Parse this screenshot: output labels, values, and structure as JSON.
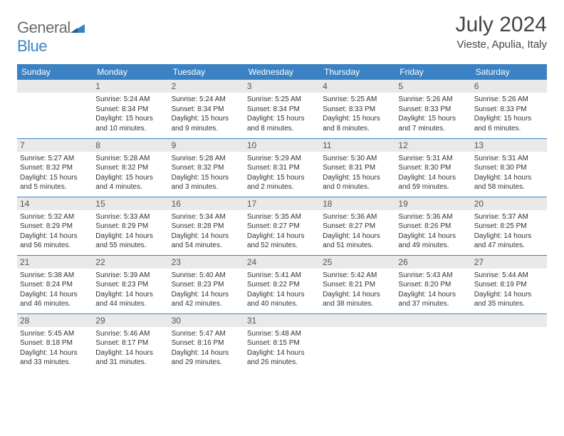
{
  "colors": {
    "header_bg": "#3b82c4",
    "header_text": "#ffffff",
    "daybar_bg": "#e9e9e9",
    "border": "#3b82c4",
    "body_text": "#333333",
    "logo_gray": "#6b6b6b",
    "logo_blue": "#3b82c4"
  },
  "logo": {
    "text_gray": "General",
    "text_blue": "Blue"
  },
  "title": {
    "month": "July 2024",
    "location": "Vieste, Apulia, Italy"
  },
  "weekdays": [
    "Sunday",
    "Monday",
    "Tuesday",
    "Wednesday",
    "Thursday",
    "Friday",
    "Saturday"
  ],
  "layout": {
    "first_weekday_index": 1,
    "days_in_month": 31
  },
  "days": {
    "1": {
      "sunrise": "5:24 AM",
      "sunset": "8:34 PM",
      "daylight": "15 hours and 10 minutes."
    },
    "2": {
      "sunrise": "5:24 AM",
      "sunset": "8:34 PM",
      "daylight": "15 hours and 9 minutes."
    },
    "3": {
      "sunrise": "5:25 AM",
      "sunset": "8:34 PM",
      "daylight": "15 hours and 8 minutes."
    },
    "4": {
      "sunrise": "5:25 AM",
      "sunset": "8:33 PM",
      "daylight": "15 hours and 8 minutes."
    },
    "5": {
      "sunrise": "5:26 AM",
      "sunset": "8:33 PM",
      "daylight": "15 hours and 7 minutes."
    },
    "6": {
      "sunrise": "5:26 AM",
      "sunset": "8:33 PM",
      "daylight": "15 hours and 6 minutes."
    },
    "7": {
      "sunrise": "5:27 AM",
      "sunset": "8:32 PM",
      "daylight": "15 hours and 5 minutes."
    },
    "8": {
      "sunrise": "5:28 AM",
      "sunset": "8:32 PM",
      "daylight": "15 hours and 4 minutes."
    },
    "9": {
      "sunrise": "5:28 AM",
      "sunset": "8:32 PM",
      "daylight": "15 hours and 3 minutes."
    },
    "10": {
      "sunrise": "5:29 AM",
      "sunset": "8:31 PM",
      "daylight": "15 hours and 2 minutes."
    },
    "11": {
      "sunrise": "5:30 AM",
      "sunset": "8:31 PM",
      "daylight": "15 hours and 0 minutes."
    },
    "12": {
      "sunrise": "5:31 AM",
      "sunset": "8:30 PM",
      "daylight": "14 hours and 59 minutes."
    },
    "13": {
      "sunrise": "5:31 AM",
      "sunset": "8:30 PM",
      "daylight": "14 hours and 58 minutes."
    },
    "14": {
      "sunrise": "5:32 AM",
      "sunset": "8:29 PM",
      "daylight": "14 hours and 56 minutes."
    },
    "15": {
      "sunrise": "5:33 AM",
      "sunset": "8:29 PM",
      "daylight": "14 hours and 55 minutes."
    },
    "16": {
      "sunrise": "5:34 AM",
      "sunset": "8:28 PM",
      "daylight": "14 hours and 54 minutes."
    },
    "17": {
      "sunrise": "5:35 AM",
      "sunset": "8:27 PM",
      "daylight": "14 hours and 52 minutes."
    },
    "18": {
      "sunrise": "5:36 AM",
      "sunset": "8:27 PM",
      "daylight": "14 hours and 51 minutes."
    },
    "19": {
      "sunrise": "5:36 AM",
      "sunset": "8:26 PM",
      "daylight": "14 hours and 49 minutes."
    },
    "20": {
      "sunrise": "5:37 AM",
      "sunset": "8:25 PM",
      "daylight": "14 hours and 47 minutes."
    },
    "21": {
      "sunrise": "5:38 AM",
      "sunset": "8:24 PM",
      "daylight": "14 hours and 46 minutes."
    },
    "22": {
      "sunrise": "5:39 AM",
      "sunset": "8:23 PM",
      "daylight": "14 hours and 44 minutes."
    },
    "23": {
      "sunrise": "5:40 AM",
      "sunset": "8:23 PM",
      "daylight": "14 hours and 42 minutes."
    },
    "24": {
      "sunrise": "5:41 AM",
      "sunset": "8:22 PM",
      "daylight": "14 hours and 40 minutes."
    },
    "25": {
      "sunrise": "5:42 AM",
      "sunset": "8:21 PM",
      "daylight": "14 hours and 38 minutes."
    },
    "26": {
      "sunrise": "5:43 AM",
      "sunset": "8:20 PM",
      "daylight": "14 hours and 37 minutes."
    },
    "27": {
      "sunrise": "5:44 AM",
      "sunset": "8:19 PM",
      "daylight": "14 hours and 35 minutes."
    },
    "28": {
      "sunrise": "5:45 AM",
      "sunset": "8:18 PM",
      "daylight": "14 hours and 33 minutes."
    },
    "29": {
      "sunrise": "5:46 AM",
      "sunset": "8:17 PM",
      "daylight": "14 hours and 31 minutes."
    },
    "30": {
      "sunrise": "5:47 AM",
      "sunset": "8:16 PM",
      "daylight": "14 hours and 29 minutes."
    },
    "31": {
      "sunrise": "5:48 AM",
      "sunset": "8:15 PM",
      "daylight": "14 hours and 26 minutes."
    }
  },
  "labels": {
    "sunrise": "Sunrise:",
    "sunset": "Sunset:",
    "daylight": "Daylight:"
  }
}
